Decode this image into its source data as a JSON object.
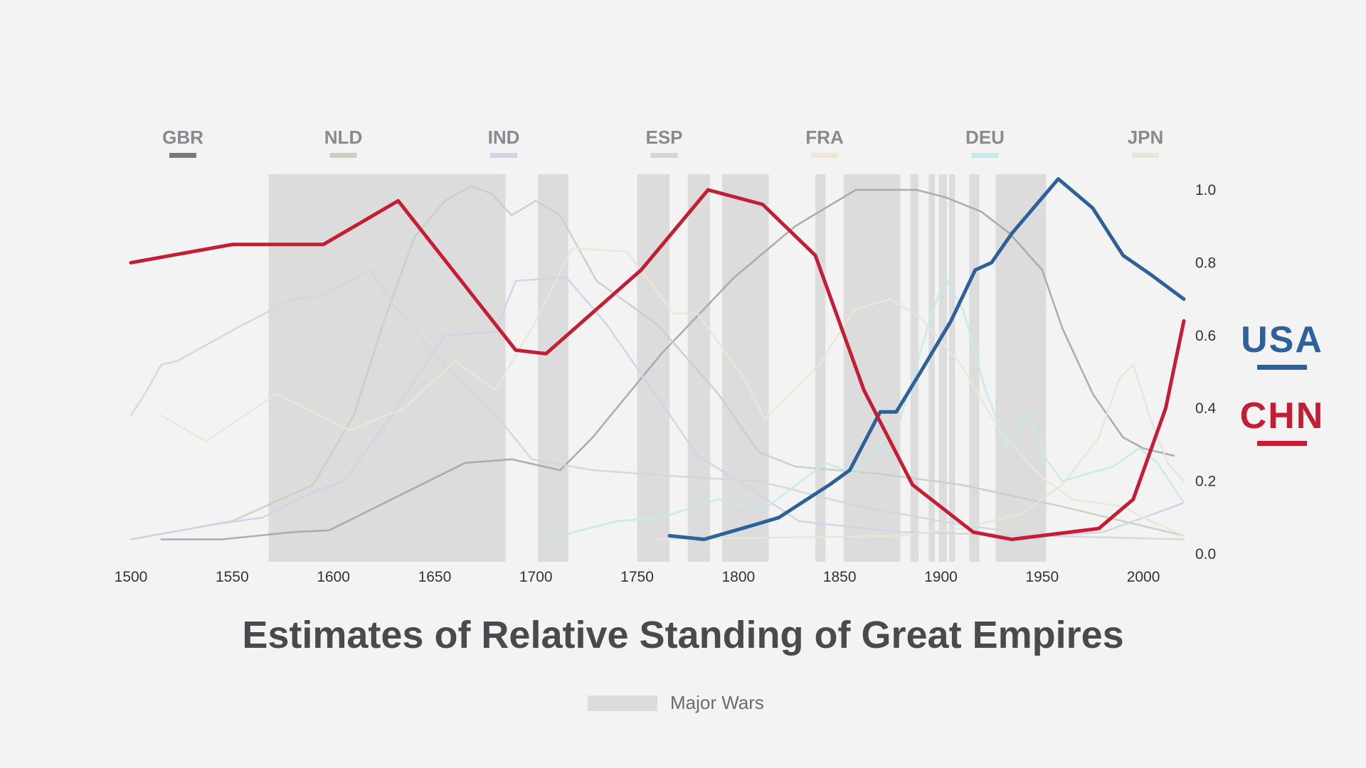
{
  "chart_data": {
    "type": "line",
    "title": "Estimates of Relative Standing of Great Empires",
    "xlim": [
      1500,
      2020
    ],
    "ylim": [
      0,
      1.0
    ],
    "x_ticks": [
      "1500",
      "1550",
      "1600",
      "1650",
      "1700",
      "1750",
      "1800",
      "1850",
      "1900",
      "1950",
      "2000"
    ],
    "y_ticks": [
      "1.0",
      "0.8",
      "0.6",
      "0.4",
      "0.2",
      "0.0"
    ],
    "y_tick_values": [
      1.0,
      0.8,
      0.6,
      0.4,
      0.2,
      0.0
    ],
    "grid": false,
    "legend_position": "top",
    "wars_legend_label": "Major Wars",
    "wars_color": "#dcdcdd",
    "major_wars": [
      [
        1568,
        1685
      ],
      [
        1701,
        1716
      ],
      [
        1750,
        1766
      ],
      [
        1775,
        1786
      ],
      [
        1792,
        1815
      ],
      [
        1838,
        1843
      ],
      [
        1852,
        1880
      ],
      [
        1885,
        1889
      ],
      [
        1894,
        1897
      ],
      [
        1899,
        1903
      ],
      [
        1904,
        1907
      ],
      [
        1914,
        1919
      ],
      [
        1927,
        1952
      ]
    ],
    "series": [
      {
        "name": "GBR",
        "color": "#a6a6a8",
        "emphasis": false,
        "points": [
          [
            1515,
            0.04
          ],
          [
            1545,
            0.04
          ],
          [
            1580,
            0.06
          ],
          [
            1598,
            0.065
          ],
          [
            1665,
            0.25
          ],
          [
            1688,
            0.26
          ],
          [
            1712,
            0.23
          ],
          [
            1728,
            0.32
          ],
          [
            1762,
            0.55
          ],
          [
            1798,
            0.76
          ],
          [
            1828,
            0.9
          ],
          [
            1858,
            1.0
          ],
          [
            1888,
            1.0
          ],
          [
            1902,
            0.98
          ],
          [
            1920,
            0.94
          ],
          [
            1934,
            0.88
          ],
          [
            1950,
            0.78
          ],
          [
            1960,
            0.62
          ],
          [
            1975,
            0.44
          ],
          [
            1990,
            0.32
          ],
          [
            2000,
            0.29
          ],
          [
            2015,
            0.27
          ]
        ]
      },
      {
        "name": "NLD",
        "color": "#c8cfc3",
        "emphasis": false,
        "points": [
          [
            1500,
            0.04
          ],
          [
            1550,
            0.09
          ],
          [
            1590,
            0.19
          ],
          [
            1610,
            0.38
          ],
          [
            1625,
            0.64
          ],
          [
            1640,
            0.87
          ],
          [
            1655,
            0.97
          ],
          [
            1668,
            1.01
          ],
          [
            1678,
            0.99
          ],
          [
            1688,
            0.93
          ],
          [
            1700,
            0.97
          ],
          [
            1712,
            0.93
          ],
          [
            1730,
            0.75
          ],
          [
            1760,
            0.63
          ],
          [
            1790,
            0.44
          ],
          [
            1810,
            0.28
          ],
          [
            1828,
            0.24
          ],
          [
            1870,
            0.22
          ],
          [
            1910,
            0.19
          ],
          [
            1960,
            0.13
          ],
          [
            2020,
            0.05
          ]
        ]
      },
      {
        "name": "IND",
        "color": "#d5d0e5",
        "emphasis": false,
        "points": [
          [
            1500,
            0.04
          ],
          [
            1540,
            0.08
          ],
          [
            1565,
            0.1
          ],
          [
            1590,
            0.17
          ],
          [
            1605,
            0.2
          ],
          [
            1625,
            0.35
          ],
          [
            1655,
            0.6
          ],
          [
            1680,
            0.61
          ],
          [
            1690,
            0.75
          ],
          [
            1715,
            0.76
          ],
          [
            1735,
            0.63
          ],
          [
            1760,
            0.43
          ],
          [
            1780,
            0.27
          ],
          [
            1800,
            0.2
          ],
          [
            1830,
            0.09
          ],
          [
            1880,
            0.06
          ],
          [
            1950,
            0.05
          ],
          [
            1980,
            0.06
          ],
          [
            2000,
            0.1
          ],
          [
            2020,
            0.14
          ]
        ]
      },
      {
        "name": "ESP",
        "color": "#d6d6d7",
        "emphasis": false,
        "points": [
          [
            1500,
            0.38
          ],
          [
            1508,
            0.45
          ],
          [
            1515,
            0.52
          ],
          [
            1523,
            0.53
          ],
          [
            1552,
            0.62
          ],
          [
            1580,
            0.7
          ],
          [
            1595,
            0.71
          ],
          [
            1618,
            0.78
          ],
          [
            1630,
            0.68
          ],
          [
            1655,
            0.52
          ],
          [
            1682,
            0.37
          ],
          [
            1698,
            0.26
          ],
          [
            1728,
            0.23
          ],
          [
            1778,
            0.21
          ],
          [
            1810,
            0.2
          ],
          [
            1860,
            0.13
          ],
          [
            1910,
            0.08
          ],
          [
            1950,
            0.05
          ],
          [
            2020,
            0.04
          ]
        ]
      },
      {
        "name": "FRA",
        "color": "#ece6d2",
        "emphasis": false,
        "points": [
          [
            1515,
            0.38
          ],
          [
            1537,
            0.31
          ],
          [
            1572,
            0.44
          ],
          [
            1608,
            0.34
          ],
          [
            1635,
            0.4
          ],
          [
            1660,
            0.53
          ],
          [
            1680,
            0.45
          ],
          [
            1700,
            0.64
          ],
          [
            1718,
            0.84
          ],
          [
            1745,
            0.83
          ],
          [
            1768,
            0.66
          ],
          [
            1780,
            0.66
          ],
          [
            1803,
            0.48
          ],
          [
            1813,
            0.37
          ],
          [
            1840,
            0.52
          ],
          [
            1857,
            0.67
          ],
          [
            1875,
            0.7
          ],
          [
            1890,
            0.65
          ],
          [
            1910,
            0.52
          ],
          [
            1930,
            0.33
          ],
          [
            1950,
            0.21
          ],
          [
            1965,
            0.15
          ],
          [
            1990,
            0.13
          ],
          [
            2000,
            0.1
          ],
          [
            2020,
            0.05
          ]
        ]
      },
      {
        "name": "DEU",
        "color": "#c7e9e9",
        "emphasis": false,
        "points": [
          [
            1705,
            0.04
          ],
          [
            1740,
            0.09
          ],
          [
            1762,
            0.1
          ],
          [
            1790,
            0.15
          ],
          [
            1812,
            0.12
          ],
          [
            1843,
            0.25
          ],
          [
            1858,
            0.22
          ],
          [
            1880,
            0.37
          ],
          [
            1895,
            0.65
          ],
          [
            1902,
            0.76
          ],
          [
            1911,
            0.67
          ],
          [
            1922,
            0.45
          ],
          [
            1933,
            0.29
          ],
          [
            1943,
            0.39
          ],
          [
            1952,
            0.26
          ],
          [
            1960,
            0.2
          ],
          [
            1985,
            0.24
          ],
          [
            1998,
            0.29
          ],
          [
            2007,
            0.25
          ],
          [
            2020,
            0.14
          ]
        ]
      },
      {
        "name": "JPN",
        "color": "#e4e7d3",
        "emphasis": false,
        "points": [
          [
            1760,
            0.04
          ],
          [
            1880,
            0.05
          ],
          [
            1910,
            0.07
          ],
          [
            1940,
            0.11
          ],
          [
            1960,
            0.19
          ],
          [
            1978,
            0.32
          ],
          [
            1988,
            0.48
          ],
          [
            1995,
            0.52
          ],
          [
            2003,
            0.38
          ],
          [
            2012,
            0.25
          ],
          [
            2020,
            0.2
          ]
        ]
      },
      {
        "name": "USA",
        "color": "#2d6199",
        "emphasis": true,
        "points": [
          [
            1766,
            0.05
          ],
          [
            1783,
            0.04
          ],
          [
            1808,
            0.08
          ],
          [
            1820,
            0.1
          ],
          [
            1845,
            0.19
          ],
          [
            1855,
            0.23
          ],
          [
            1870,
            0.39
          ],
          [
            1878,
            0.39
          ],
          [
            1890,
            0.5
          ],
          [
            1905,
            0.64
          ],
          [
            1917,
            0.78
          ],
          [
            1925,
            0.8
          ],
          [
            1935,
            0.88
          ],
          [
            1958,
            1.03
          ],
          [
            1975,
            0.95
          ],
          [
            1990,
            0.82
          ],
          [
            2003,
            0.77
          ],
          [
            2020,
            0.7
          ]
        ]
      },
      {
        "name": "CHN",
        "color": "#c41e35",
        "emphasis": true,
        "points": [
          [
            1500,
            0.8
          ],
          [
            1550,
            0.85
          ],
          [
            1595,
            0.85
          ],
          [
            1632,
            0.97
          ],
          [
            1690,
            0.56
          ],
          [
            1705,
            0.55
          ],
          [
            1752,
            0.78
          ],
          [
            1785,
            1.0
          ],
          [
            1812,
            0.96
          ],
          [
            1838,
            0.82
          ],
          [
            1862,
            0.45
          ],
          [
            1886,
            0.19
          ],
          [
            1916,
            0.06
          ],
          [
            1935,
            0.04
          ],
          [
            1978,
            0.07
          ],
          [
            1995,
            0.15
          ],
          [
            2011,
            0.4
          ],
          [
            2020,
            0.64
          ]
        ]
      }
    ]
  }
}
